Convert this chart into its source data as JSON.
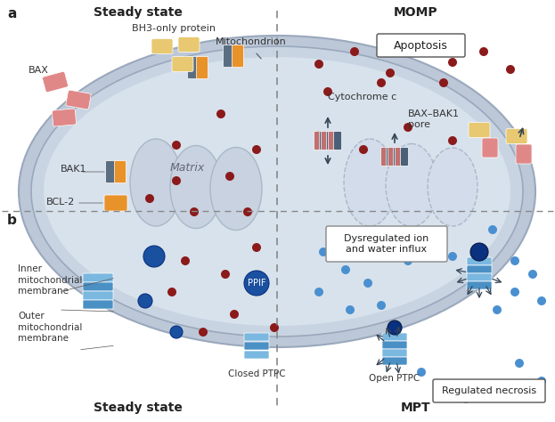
{
  "bg_color": "#ffffff",
  "section_a_label": "a",
  "section_b_label": "b",
  "steady_state_label": "Steady state",
  "momp_label": "MOMP",
  "mpt_label": "MPT",
  "steady_state_label_b": "Steady state",
  "matrix_label": "Matrix",
  "bax_label": "BAX",
  "bak1_label": "BAK1",
  "bcl2_label": "BCL-2",
  "bh3_label": "BH3-only protein",
  "mito_label": "Mitochondrion",
  "cytc_label": "Cytochrome c",
  "apoptosis_label": "Apoptosis",
  "baxbak1_label": "BAX–BAK1\npore",
  "ppif_label": "PPIF",
  "dysregulated_label": "Dysregulated ion\nand water influx",
  "inner_mito_label": "Inner\nmitochondrial\nmembrane",
  "outer_mito_label": "Outer\nmitochondrial\nmembrane",
  "closed_ptpc_label": "Closed PTPC",
  "open_ptpc_label": "Open PTPC",
  "regulated_necrosis_label": "Regulated necrosis",
  "bax_color": "#e08888",
  "bh3_color": "#e8c870",
  "bak1_dark": "#5a6e82",
  "bak1_orange": "#e8922a",
  "cytc_color": "#8b1a1a",
  "ptpc_light": "#7ab8e0",
  "ptpc_dark": "#4a90c4",
  "ppif_color": "#1a50a0",
  "ion_blue": "#4a90d0",
  "pore_pink": "#c07070",
  "pore_dark": "#4a6078"
}
